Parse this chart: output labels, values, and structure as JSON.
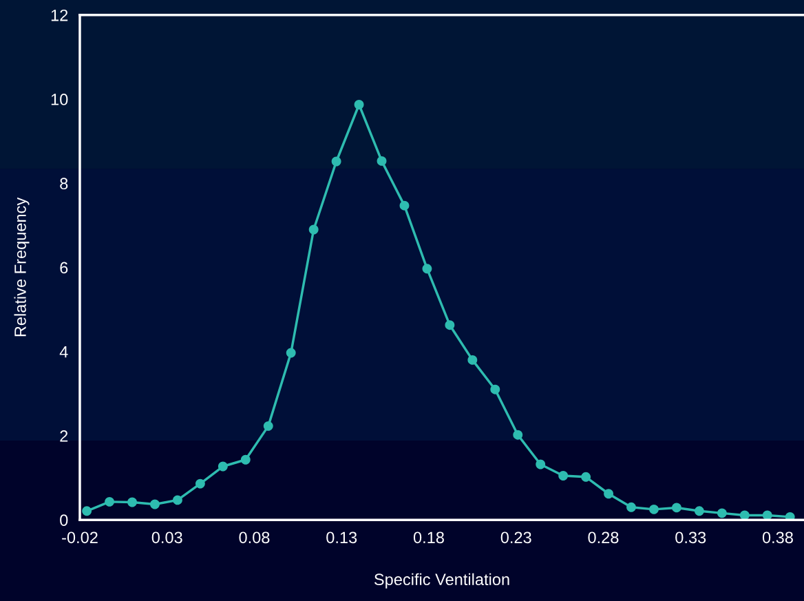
{
  "chart_data": {
    "type": "line",
    "xlabel": "Specific Ventilation",
    "ylabel": "Relative Frequency",
    "x": [
      -0.016,
      -0.003,
      0.01,
      0.023,
      0.036,
      0.049,
      0.062,
      0.075,
      0.088,
      0.101,
      0.114,
      0.127,
      0.14,
      0.153,
      0.166,
      0.179,
      0.192,
      0.205,
      0.218,
      0.231,
      0.244,
      0.257,
      0.27,
      0.283,
      0.296,
      0.309,
      0.322,
      0.335,
      0.348,
      0.361,
      0.374,
      0.387
    ],
    "series": [
      {
        "color": "#2ebcb0",
        "values": [
          0.21,
          0.43,
          0.42,
          0.37,
          0.47,
          0.86,
          1.27,
          1.43,
          2.23,
          3.97,
          6.9,
          8.52,
          9.87,
          8.53,
          7.47,
          5.97,
          4.63,
          3.8,
          3.1,
          2.02,
          1.32,
          1.05,
          1.02,
          0.62,
          0.3,
          0.25,
          0.29,
          0.21,
          0.16,
          0.11,
          0.11,
          0.07
        ]
      }
    ],
    "xlim": [
      -0.02,
      0.395
    ],
    "xticks": [
      -0.02,
      0.03,
      0.08,
      0.13,
      0.18,
      0.23,
      0.28,
      0.33,
      0.38
    ],
    "ylim": [
      0,
      12
    ],
    "yticks": [
      0,
      2,
      4,
      6,
      8,
      10,
      12
    ],
    "grid": false,
    "marker": "circle",
    "line_style": "solid"
  }
}
